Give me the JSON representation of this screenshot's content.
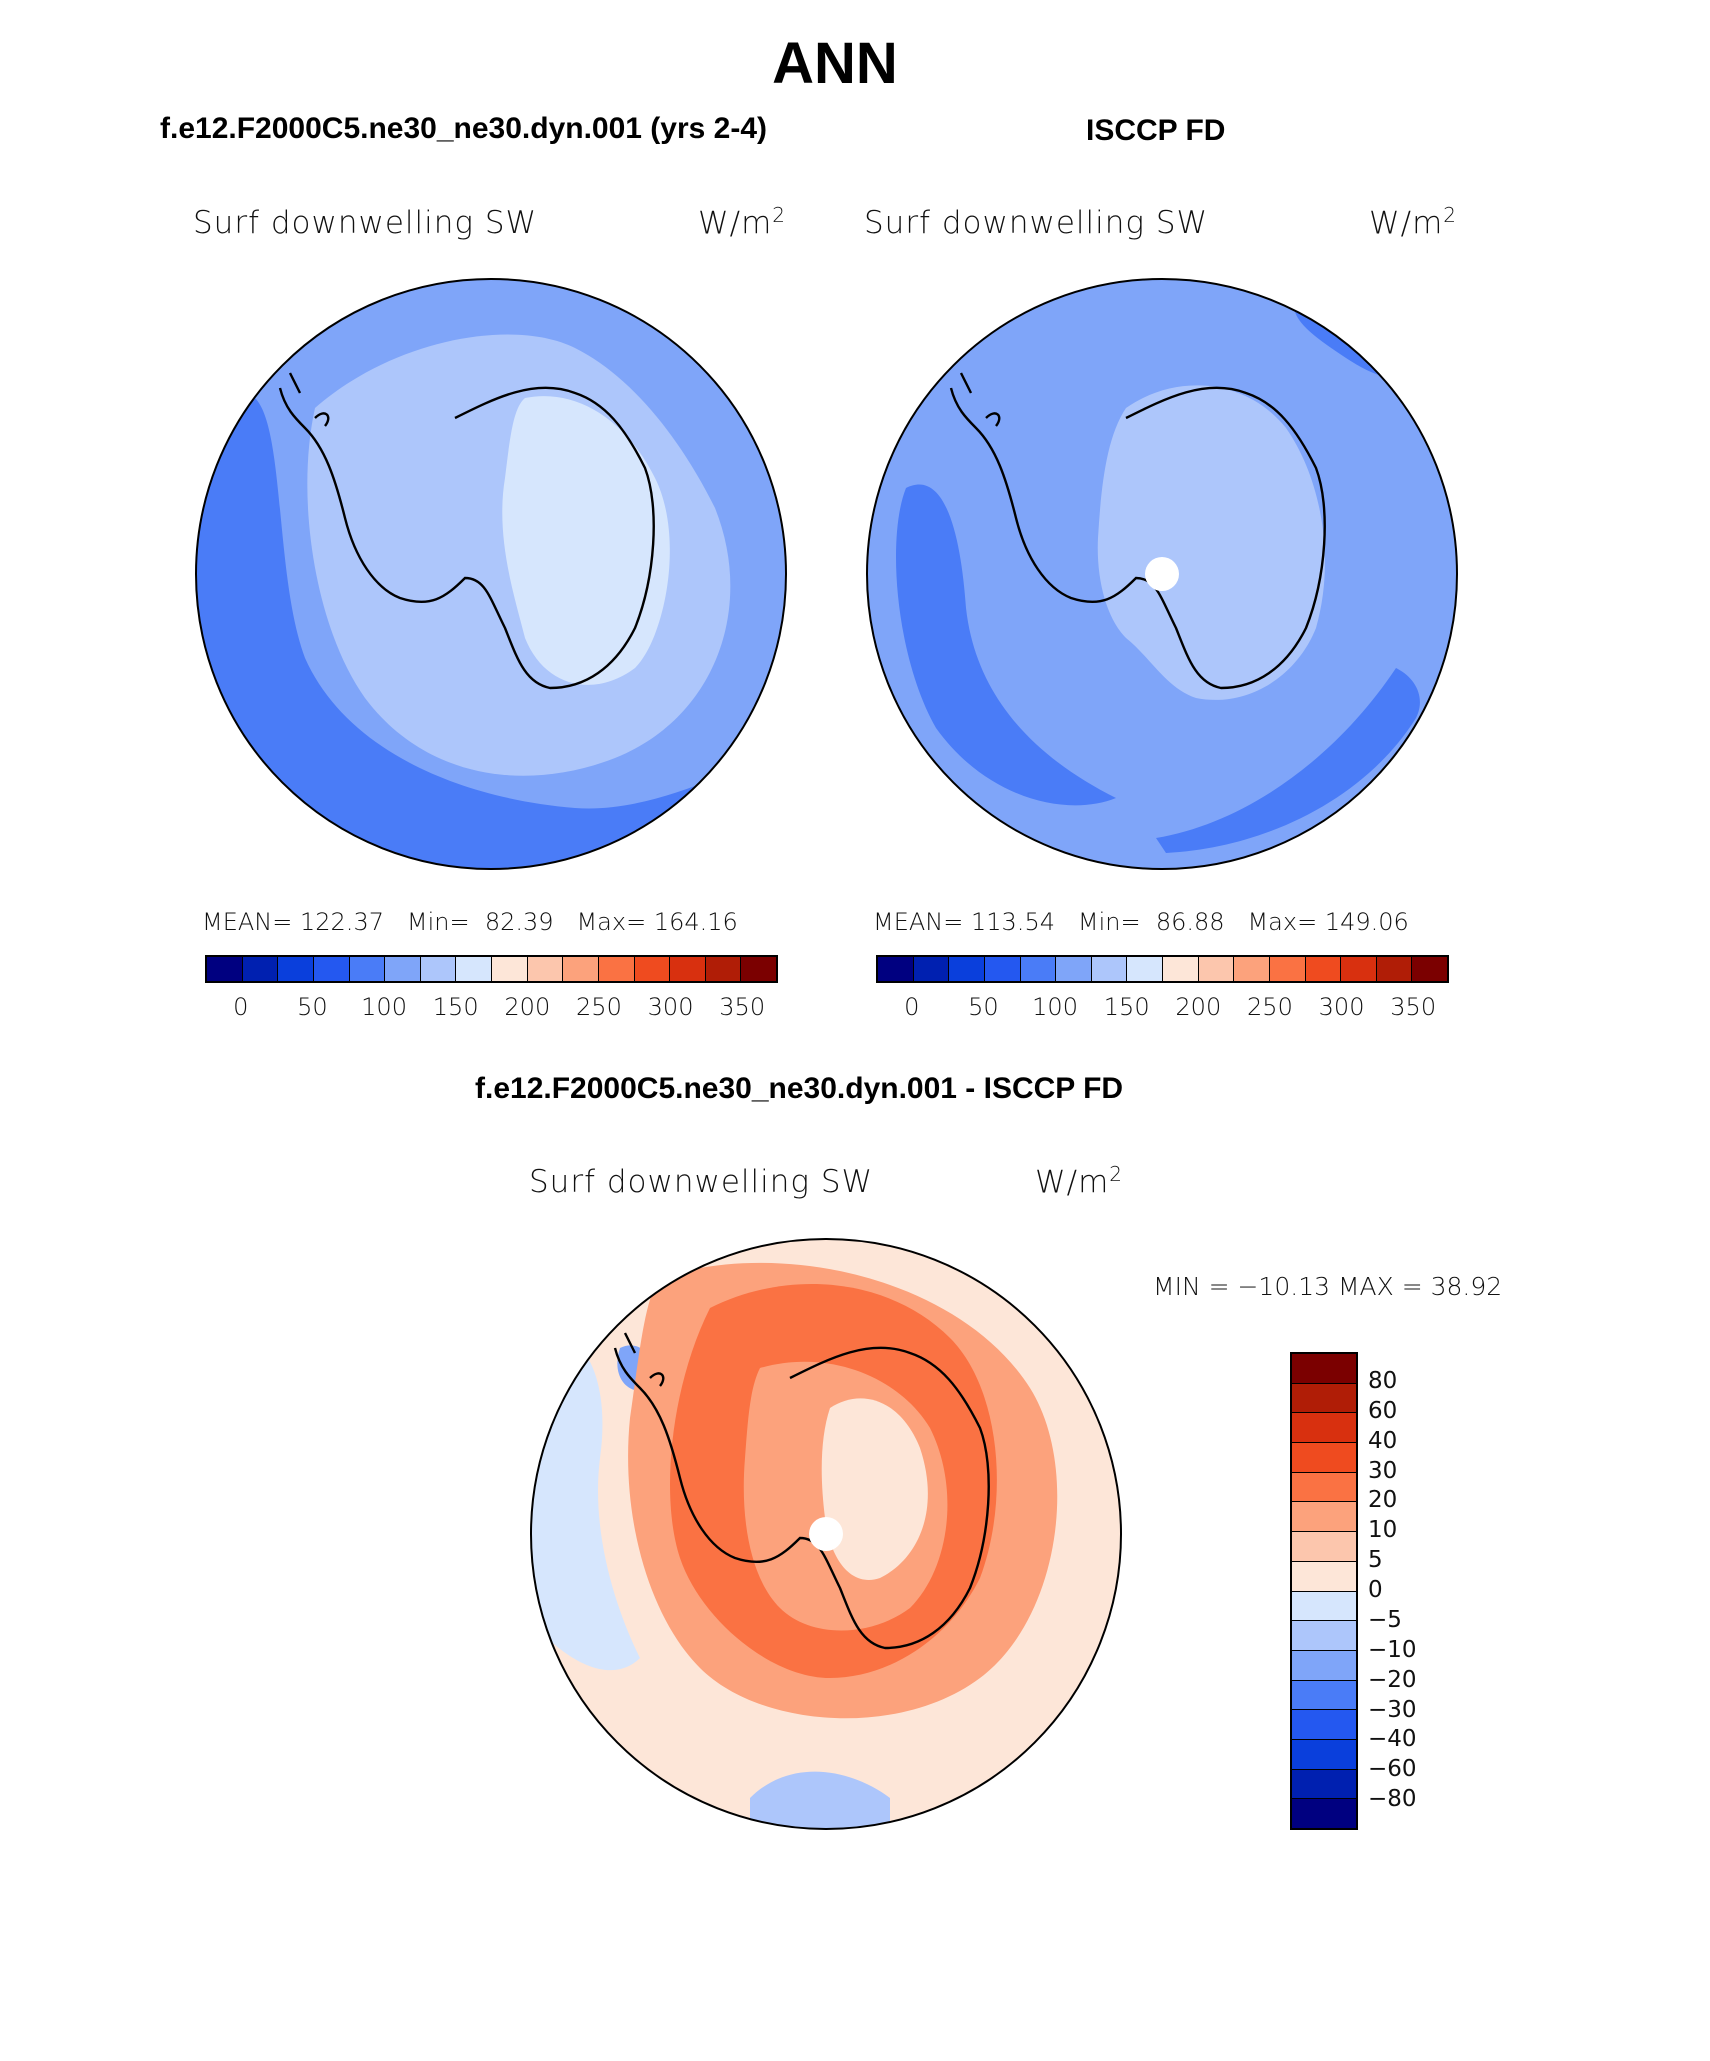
{
  "title": "ANN",
  "panels": [
    {
      "case_title": "f.e12.F2000C5.ne30_ne30.dyn.001 (yrs 2-4)",
      "variable": "Surf downwelling SW",
      "units_base": "W/m",
      "units_exp": "2",
      "stats": {
        "mean_label": "MEAN=",
        "mean": "122.37",
        "min_label": "Min=",
        "min": "82.39",
        "max_label": "Max=",
        "max": "164.16"
      }
    },
    {
      "case_title": "ISCCP FD",
      "variable": "Surf downwelling SW",
      "units_base": "W/m",
      "units_exp": "2",
      "stats": {
        "mean_label": "MEAN=",
        "mean": "113.54",
        "min_label": "Min=",
        "min": "86.88",
        "max_label": "Max=",
        "max": "149.06"
      }
    }
  ],
  "diff_panel": {
    "case_title": "f.e12.F2000C5.ne30_ne30.dyn.001 - ISCCP FD",
    "variable": "Surf downwelling SW",
    "units_base": "W/m",
    "units_exp": "2",
    "minmax": "MIN = −10.13 MAX =   38.92"
  },
  "colorbar_abs": {
    "ticks": [
      "0",
      "50",
      "100",
      "150",
      "200",
      "250",
      "300",
      "350"
    ],
    "colors": [
      "#000080",
      "#0020b0",
      "#0a3fdc",
      "#2458f0",
      "#4a7cf7",
      "#7fa5f9",
      "#adc6fb",
      "#d6e6fd",
      "#fde6d8",
      "#fcc6ad",
      "#fca27c",
      "#fa7243",
      "#ef4b1f",
      "#d8300f",
      "#b01d06",
      "#7b0000"
    ]
  },
  "colorbar_diff": {
    "ticks": [
      "80",
      "60",
      "40",
      "30",
      "20",
      "10",
      "5",
      "0",
      "−5",
      "−10",
      "−20",
      "−30",
      "−40",
      "−60",
      "−80"
    ],
    "colors": [
      "#7b0000",
      "#b01d06",
      "#d8300f",
      "#ef4b1f",
      "#fa7243",
      "#fca27c",
      "#fcc6ad",
      "#fde6d8",
      "#d6e6fd",
      "#adc6fb",
      "#7fa5f9",
      "#4a7cf7",
      "#2458f0",
      "#0a3fdc",
      "#0020b0",
      "#000080"
    ]
  }
}
